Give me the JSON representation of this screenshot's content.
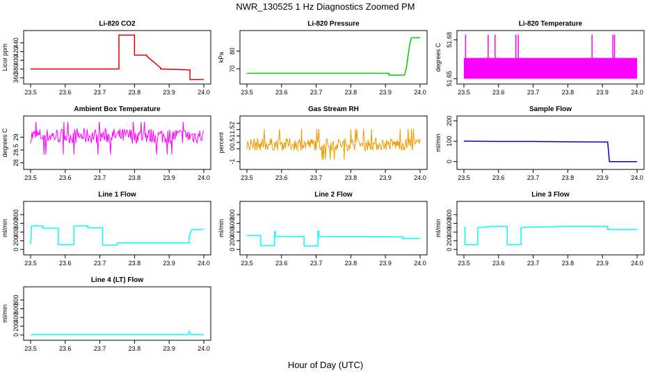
{
  "page": {
    "title": "NWR_130525  1 Hz Diagnostics Zoomed PM",
    "xlabel": "Hour of Day (UTC)"
  },
  "colors": {
    "co2": "#dd0000",
    "pressure": "#00cc00",
    "magenta": "#ff00ff",
    "rh": "#ee9900",
    "sample_flow": "#0000cc",
    "cyan": "#00ffff",
    "axis": "#000000"
  },
  "chart_data": [
    {
      "type": "line",
      "title": "Li-820 CO2",
      "ylabel": "Licor ppm",
      "color": "#dd0000",
      "xlim": [
        23.5,
        24.0
      ],
      "ylim": [
        352,
        462
      ],
      "xticks": [
        "23.5",
        "23.6",
        "23.7",
        "23.8",
        "23.9",
        "24.0"
      ],
      "yticks": [
        360,
        380,
        400,
        420,
        440
      ],
      "series": [
        {
          "x": [
            23.5,
            23.6,
            23.755,
            23.755,
            23.8,
            23.8,
            23.835,
            23.835,
            23.875,
            23.875,
            23.93,
            23.96,
            23.96,
            24.0
          ],
          "y": [
            380,
            380,
            380,
            458,
            458,
            412,
            412,
            410,
            383,
            380,
            379,
            378,
            356,
            356
          ]
        }
      ]
    },
    {
      "type": "line",
      "title": "Li-820 Pressure",
      "ylabel": "kPa",
      "color": "#00cc00",
      "xlim": [
        23.5,
        24.0
      ],
      "ylim": [
        63,
        90
      ],
      "xticks": [
        "23.5",
        "23.6",
        "23.7",
        "23.8",
        "23.9",
        "24.0"
      ],
      "yticks": [
        70,
        80
      ],
      "series": [
        {
          "x": [
            23.5,
            23.91,
            23.91,
            23.955,
            23.96,
            23.97,
            23.975,
            24.0
          ],
          "y": [
            67.5,
            67.5,
            66.5,
            66.5,
            70,
            84,
            87.5,
            87.5
          ]
        }
      ]
    },
    {
      "type": "area",
      "title": "Li-820 Temperature",
      "ylabel": "degrees C",
      "color": "#ff00ff",
      "xlim": [
        23.5,
        24.0
      ],
      "ylim": [
        51.648,
        51.685
      ],
      "xticks": [
        "23.5",
        "23.6",
        "23.7",
        "23.8",
        "23.9",
        "24.0"
      ],
      "yticks": [
        51.65,
        51.68
      ],
      "band": [
        51.65,
        51.666
      ],
      "spikes_x": [
        23.505,
        23.57,
        23.59,
        23.65,
        23.657,
        23.87,
        23.93,
        23.935
      ],
      "spike_top": 51.684,
      "series": []
    },
    {
      "type": "line",
      "title": "Ambient Box Temperature",
      "ylabel": "degrees C",
      "color": "#ff00ff",
      "xlim": [
        23.5,
        24.0
      ],
      "ylim": [
        27.85,
        29.72
      ],
      "xticks": [
        "23.5",
        "23.6",
        "23.7",
        "23.8",
        "23.9",
        "24.0"
      ],
      "yticks": [
        28.0,
        28.5,
        29.0
      ],
      "noise": {
        "center": 29.05,
        "amp": 0.3,
        "min": 28.05,
        "max": 29.6
      },
      "series": []
    },
    {
      "type": "line",
      "title": "Gas Stream RH",
      "ylabel": "percent",
      "color": "#ee9900",
      "xlim": [
        23.5,
        24.0
      ],
      "ylim": [
        -1.4,
        2.35
      ],
      "xticks": [
        "23.5",
        "23.6",
        "23.7",
        "23.8",
        "23.9",
        "24.0"
      ],
      "yticks": [
        -1.0,
        0.0,
        0.5,
        1.0,
        1.5,
        2.0
      ],
      "noise": {
        "center": 0.35,
        "amp": 0.5,
        "min": -1.3,
        "max": 2.2
      },
      "series": []
    },
    {
      "type": "line",
      "title": "Sample Flow",
      "ylabel": "ml/min",
      "color": "#0000cc",
      "xlim": [
        23.5,
        24.0
      ],
      "ylim": [
        -25,
        210
      ],
      "xticks": [
        "23.5",
        "23.6",
        "23.7",
        "23.8",
        "23.9",
        "24.0"
      ],
      "yticks": [
        0,
        100,
        200
      ],
      "series": [
        {
          "x": [
            23.5,
            23.6,
            23.7,
            23.8,
            23.915,
            23.92,
            24.0
          ],
          "y": [
            100,
            99,
            99,
            97,
            96,
            0,
            0
          ]
        }
      ]
    },
    {
      "type": "line",
      "title": "Line 1 Flow",
      "ylabel": "ml/min",
      "color": "#00ffff",
      "xlim": [
        23.5,
        24.0
      ],
      "ylim": [
        -60,
        1040
      ],
      "xticks": [
        "23.5",
        "23.6",
        "23.7",
        "23.8",
        "23.9",
        "24.0"
      ],
      "yticks": [
        0,
        200,
        400,
        600,
        800
      ],
      "series": [
        {
          "x": [
            23.5,
            23.503,
            23.535,
            23.535,
            23.58,
            23.58,
            23.625,
            23.625,
            23.665,
            23.665,
            23.708,
            23.708,
            23.75,
            23.75,
            23.958,
            23.958,
            23.965,
            24.0
          ],
          "y": [
            120,
            540,
            540,
            490,
            490,
            110,
            110,
            540,
            540,
            500,
            500,
            100,
            100,
            150,
            150,
            300,
            460,
            460
          ]
        }
      ]
    },
    {
      "type": "line",
      "title": "Line 2 Flow",
      "ylabel": "ml/min",
      "color": "#00ffff",
      "xlim": [
        23.5,
        24.0
      ],
      "ylim": [
        -60,
        1040
      ],
      "xticks": [
        "23.5",
        "23.6",
        "23.7",
        "23.8",
        "23.9",
        "24.0"
      ],
      "yticks": [
        0,
        200,
        400,
        600,
        800
      ],
      "series": [
        {
          "x": [
            23.5,
            23.54,
            23.54,
            23.58,
            23.58,
            23.582,
            23.582,
            23.665,
            23.665,
            23.705,
            23.705,
            23.708,
            23.708,
            23.95,
            23.95,
            24.0
          ],
          "y": [
            320,
            320,
            90,
            90,
            410,
            410,
            300,
            300,
            80,
            80,
            420,
            420,
            300,
            290,
            250,
            250
          ]
        }
      ]
    },
    {
      "type": "line",
      "title": "Line 3 Flow",
      "ylabel": "ml/min",
      "color": "#00ffff",
      "xlim": [
        23.5,
        24.0
      ],
      "ylim": [
        -60,
        1040
      ],
      "xticks": [
        "23.5",
        "23.6",
        "23.7",
        "23.8",
        "23.9",
        "24.0"
      ],
      "yticks": [
        0,
        200,
        400,
        600,
        800
      ],
      "series": [
        {
          "x": [
            23.5,
            23.503,
            23.503,
            23.54,
            23.54,
            23.58,
            23.625,
            23.625,
            23.665,
            23.665,
            23.675,
            23.675,
            23.8,
            23.915,
            23.915,
            24.0
          ],
          "y": [
            500,
            500,
            110,
            110,
            500,
            530,
            530,
            110,
            110,
            500,
            500,
            510,
            530,
            530,
            460,
            460
          ]
        }
      ]
    },
    {
      "type": "line",
      "title": "Line 4 (LT) Flow",
      "ylabel": "ml/min",
      "color": "#00ffff",
      "xlim": [
        23.5,
        24.0
      ],
      "ylim": [
        -60,
        1040
      ],
      "xticks": [
        "23.5",
        "23.6",
        "23.7",
        "23.8",
        "23.9",
        "24.0"
      ],
      "yticks": [
        0,
        200,
        400,
        600,
        800
      ],
      "series": [
        {
          "x": [
            23.5,
            23.955,
            23.958,
            23.962,
            24.0
          ],
          "y": [
            5,
            5,
            80,
            5,
            5
          ]
        }
      ]
    }
  ]
}
